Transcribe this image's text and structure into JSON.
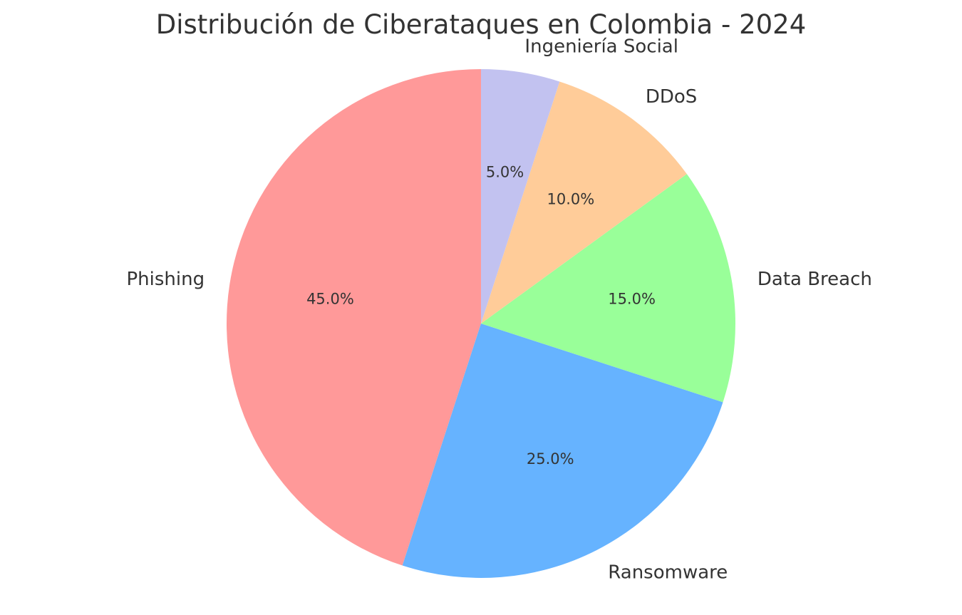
{
  "chart_data": {
    "type": "pie",
    "title": "Distribución de Ciberataques en Colombia - 2024",
    "categories": [
      "Phishing",
      "Ransomware",
      "Data Breach",
      "DDoS",
      "Ingeniería Social"
    ],
    "values": [
      45,
      25,
      15,
      10,
      5
    ],
    "percent_labels": [
      "45.0%",
      "25.0%",
      "15.0%",
      "10.0%",
      "5.0%"
    ],
    "colors": [
      "#ff9999",
      "#66b3ff",
      "#99ff99",
      "#ffcc99",
      "#c2c2f0"
    ],
    "start_angle_deg": 90,
    "direction": "counterclockwise",
    "legend": "none"
  }
}
